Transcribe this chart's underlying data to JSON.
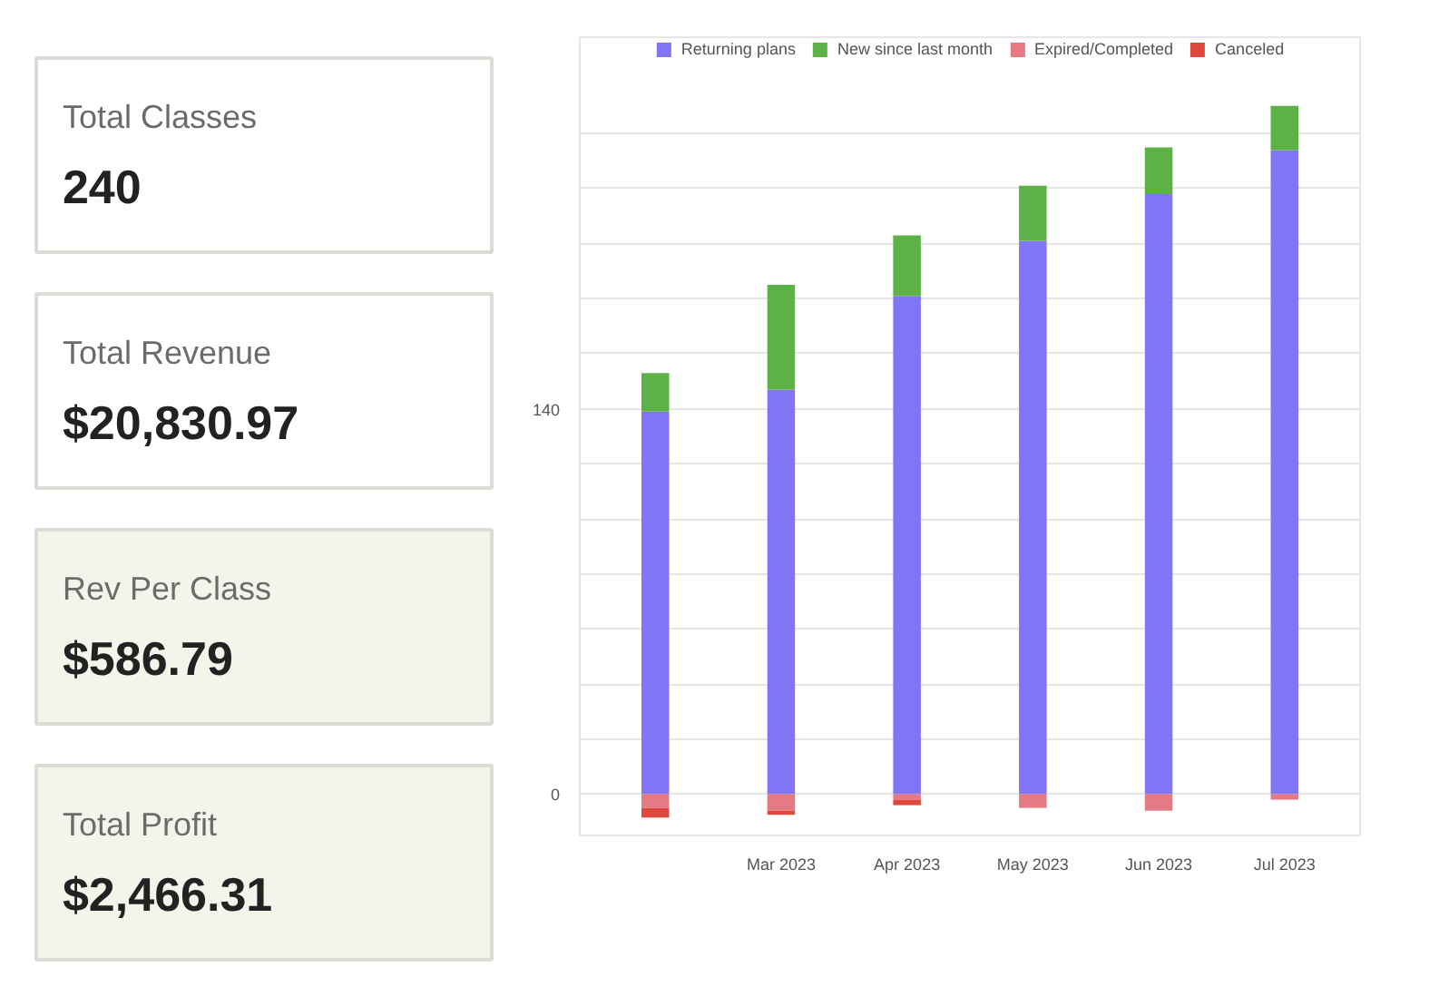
{
  "chart_data": [
    {
      "type": "other",
      "annotations": [
        "Total Classes",
        "240",
        "Total Revenue",
        "$20,830.97",
        "Rev Per Class",
        "$586.79",
        "Total Profit",
        "$2,466.31"
      ]
    },
    {
      "type": "bar",
      "stacked": true,
      "relative": false,
      "categories": [
        null,
        "Mar 2023",
        "Apr 2023",
        "May 2023",
        "Jun 2023",
        "Jul 2023"
      ],
      "series": [
        {
          "name": "Returning plans",
          "color": "#8076f5",
          "values": [
            139,
            147,
            181,
            201,
            218,
            234
          ]
        },
        {
          "name": "New since last month",
          "color": "#5cb244",
          "values": [
            14,
            38,
            22,
            20,
            17,
            16
          ]
        },
        {
          "name": "Expired/Completed",
          "color": "#e57a85",
          "values": [
            -5,
            -6,
            -2,
            -5,
            -6,
            -2
          ]
        },
        {
          "name": "Canceled",
          "color": "#e0473c",
          "values": [
            -3.5,
            -1.5,
            -2,
            null,
            null,
            null
          ]
        }
      ],
      "ylim": [
        -15,
        275
      ],
      "yticks": [
        {
          "value": 0,
          "label": "0"
        },
        {
          "value": 20,
          "label": null
        },
        {
          "value": 40,
          "label": null
        },
        {
          "value": 60,
          "label": null
        },
        {
          "value": 80,
          "label": null
        },
        {
          "value": 100,
          "label": null
        },
        {
          "value": 120,
          "label": null
        },
        {
          "value": 140,
          "label": "140"
        },
        {
          "value": 160,
          "label": null
        },
        {
          "value": 180,
          "label": null
        },
        {
          "value": 200,
          "label": null
        },
        {
          "value": 220,
          "label": null
        },
        {
          "value": 240,
          "label": null
        }
      ],
      "grid": "y",
      "legend": "top"
    }
  ]
}
